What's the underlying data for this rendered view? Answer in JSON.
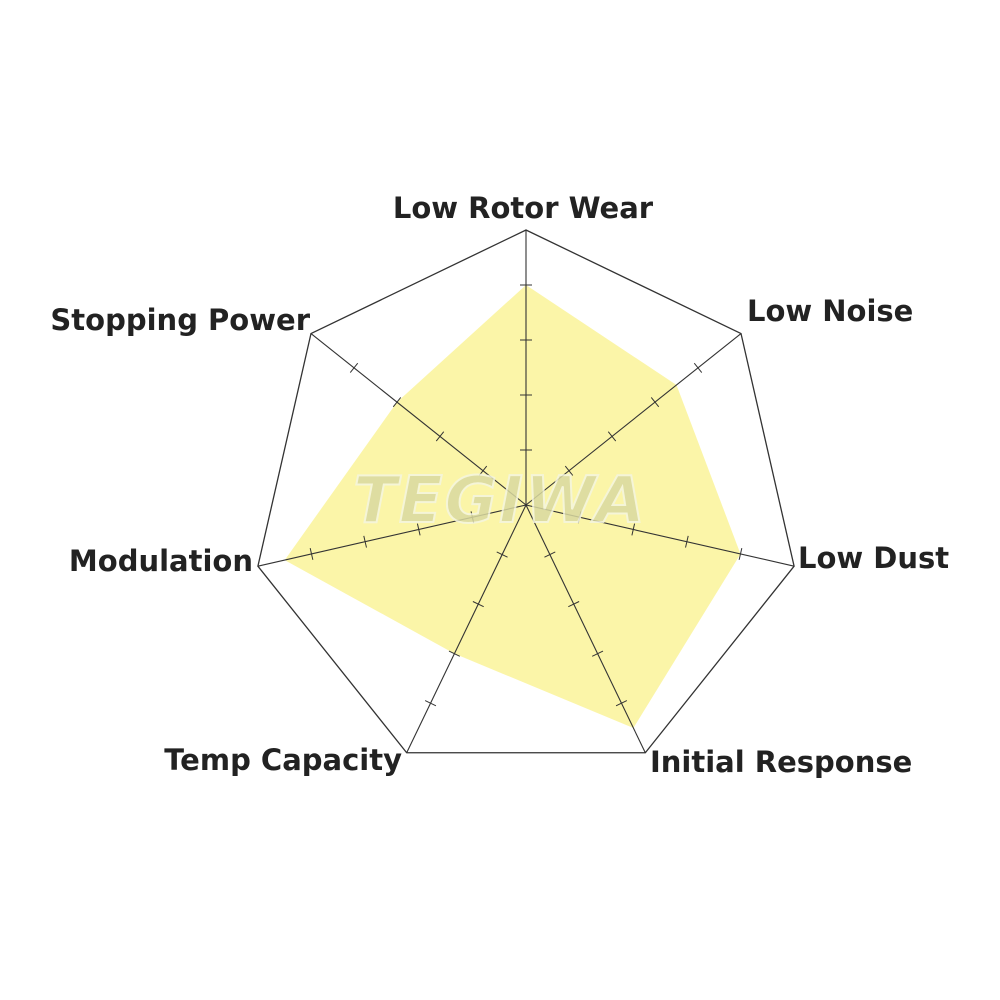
{
  "chart_data": {
    "type": "radar",
    "categories": [
      "Low Rotor Wear",
      "Low Noise",
      "Low Dust",
      "Initial Response",
      "Temp Capacity",
      "Modulation",
      "Stopping Power"
    ],
    "values": [
      4,
      3.5,
      4,
      4.5,
      3,
      4.5,
      3
    ],
    "range": [
      0,
      5
    ],
    "tick_step": 1,
    "fill_color": "#fbf5a8",
    "line_color": "#333333"
  },
  "watermark": "TEGIWA"
}
